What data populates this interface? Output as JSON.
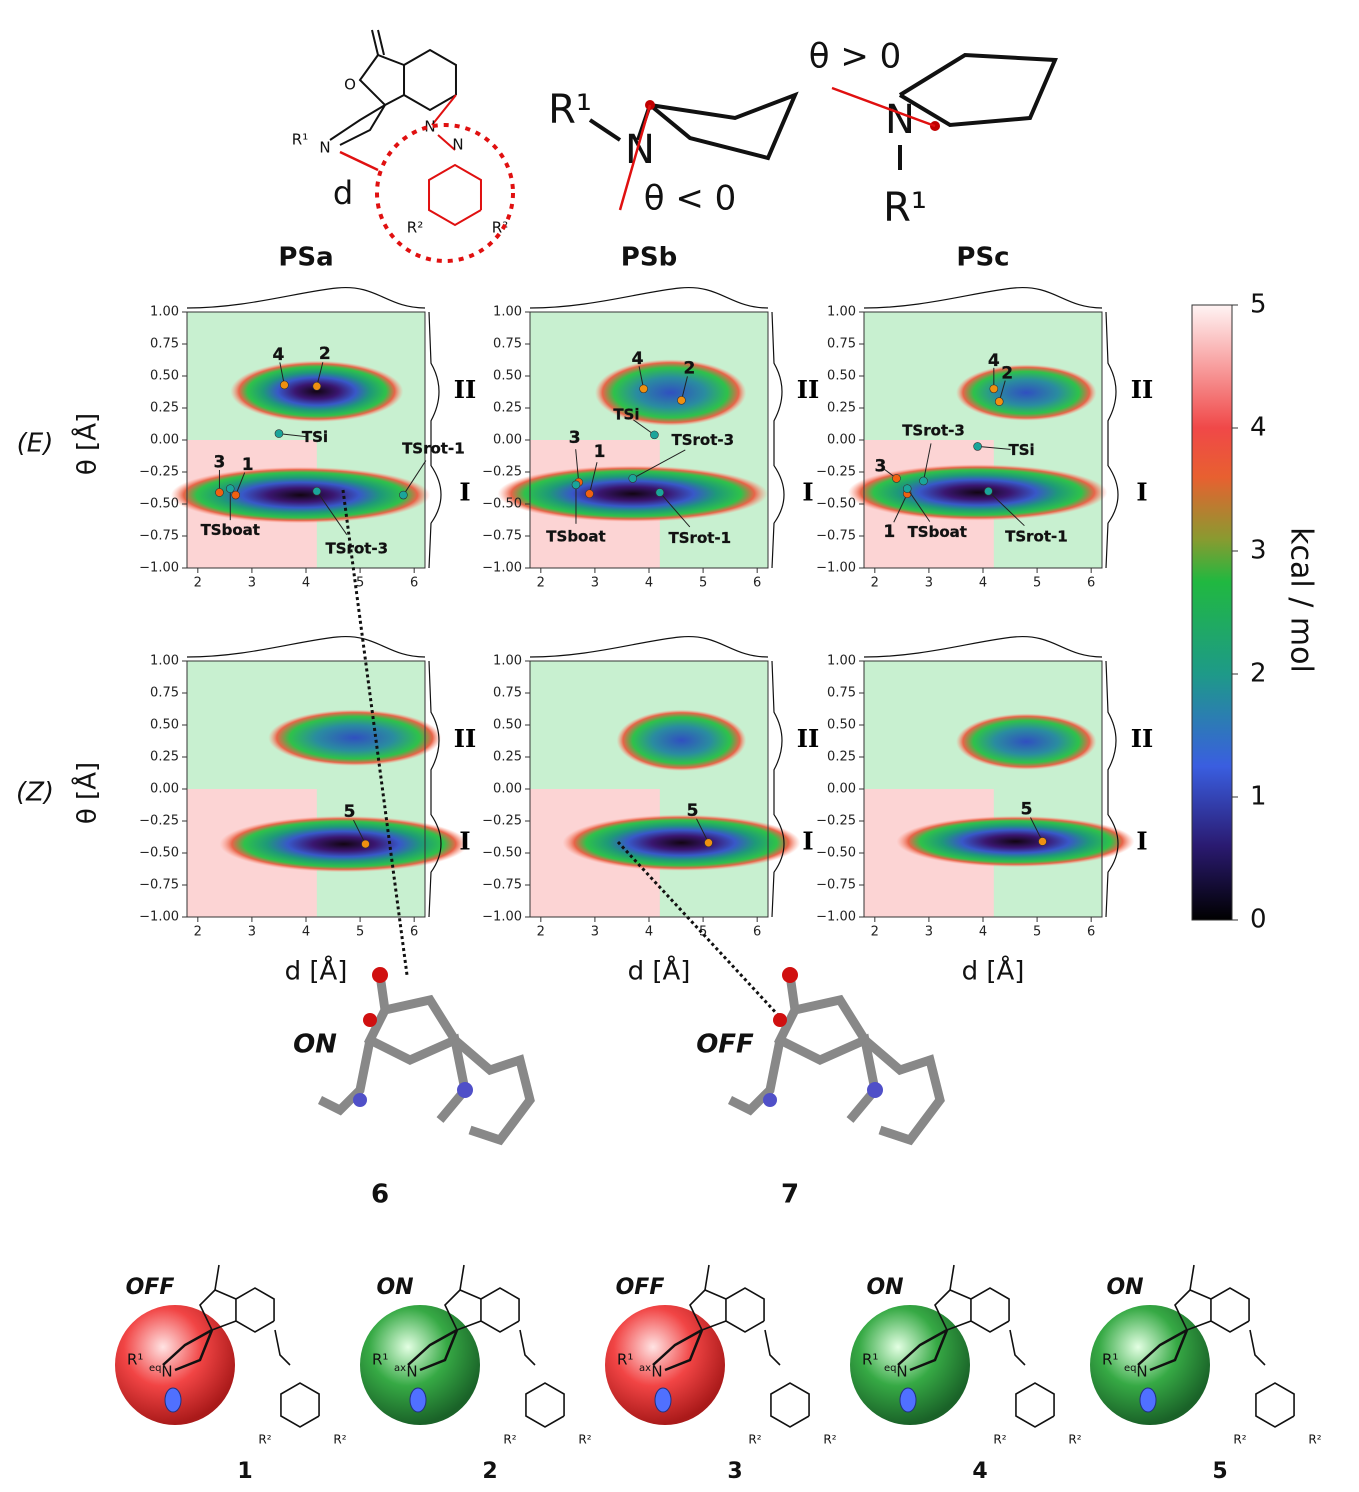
{
  "scheme": {
    "d": "d",
    "o": "O",
    "n": "N",
    "azo1": "N",
    "azo2": "N",
    "r1": "R¹",
    "r2a": "R²",
    "r2b": "R²",
    "theta_neg": "θ < 0",
    "theta_pos": "θ > 0",
    "left_r1": "R¹",
    "left_n": "N",
    "right_n": "N",
    "right_r1": "R¹"
  },
  "columns": [
    "PSa",
    "PSb",
    "PSc"
  ],
  "rows": [
    {
      "label": "(E)",
      "ylabel": "θ [Å]"
    },
    {
      "label": "(Z)",
      "ylabel": "θ [Å]"
    }
  ],
  "xlabel": "d [Å]",
  "basins": [
    "II",
    "I"
  ],
  "axes": {
    "xlim": [
      1.8,
      6.2
    ],
    "ylim": [
      -1,
      1
    ],
    "xticks": [
      2,
      3,
      4,
      5,
      6
    ],
    "yticks": [
      {
        "value": 1,
        "label": "1.00"
      },
      {
        "value": 0.75,
        "label": "0.75"
      },
      {
        "value": 0.5,
        "label": "0.50"
      },
      {
        "value": 0.25,
        "label": "0.25"
      },
      {
        "value": 0,
        "label": "0.00"
      },
      {
        "value": -0.25,
        "label": "−0.25"
      },
      {
        "value": -0.5,
        "label": "−0.50"
      },
      {
        "value": -0.75,
        "label": "−0.75"
      },
      {
        "value": -1,
        "label": "−1.00"
      }
    ]
  },
  "panels": [
    {
      "points": [
        {
          "label": "4",
          "d": 3.6,
          "theta": 0.43,
          "color": "#f09010"
        },
        {
          "label": "2",
          "d": 4.2,
          "theta": 0.42,
          "color": "#f09010"
        },
        {
          "label": "TSi",
          "d": 3.5,
          "theta": 0.05,
          "color": "#1aa59a"
        },
        {
          "label": "3",
          "d": 2.4,
          "theta": -0.41,
          "color": "#f06010"
        },
        {
          "label": "1",
          "d": 2.7,
          "theta": -0.43,
          "color": "#f06010"
        },
        {
          "label": "TSboat",
          "d": 2.6,
          "theta": -0.38,
          "color": "#1aa59a"
        },
        {
          "label": "TSrot-3",
          "d": 4.2,
          "theta": -0.4,
          "color": "#1aa59a"
        },
        {
          "label": "TSrot-1",
          "d": 5.8,
          "theta": -0.43,
          "color": "#1aa59a"
        }
      ]
    },
    {
      "points": [
        {
          "label": "4",
          "d": 3.9,
          "theta": 0.4,
          "color": "#f09010"
        },
        {
          "label": "2",
          "d": 4.6,
          "theta": 0.31,
          "color": "#f09010"
        },
        {
          "label": "TSi",
          "d": 4.1,
          "theta": 0.04,
          "color": "#1aa59a"
        },
        {
          "label": "3",
          "d": 2.7,
          "theta": -0.33,
          "color": "#f06010"
        },
        {
          "label": "1",
          "d": 2.9,
          "theta": -0.42,
          "color": "#f06010"
        },
        {
          "label": "TSboat",
          "d": 2.65,
          "theta": -0.35,
          "color": "#1aa59a"
        },
        {
          "label": "TSrot-3",
          "d": 3.7,
          "theta": -0.3,
          "color": "#1aa59a"
        },
        {
          "label": "TSrot-1",
          "d": 4.2,
          "theta": -0.41,
          "color": "#1aa59a"
        }
      ]
    },
    {
      "points": [
        {
          "label": "4",
          "d": 4.2,
          "theta": 0.4,
          "color": "#f09010"
        },
        {
          "label": "2",
          "d": 4.3,
          "theta": 0.3,
          "color": "#f09010"
        },
        {
          "label": "TSi",
          "d": 3.9,
          "theta": -0.05,
          "color": "#1aa59a"
        },
        {
          "label": "3",
          "d": 2.4,
          "theta": -0.3,
          "color": "#f06010"
        },
        {
          "label": "1",
          "d": 2.6,
          "theta": -0.42,
          "color": "#f06010"
        },
        {
          "label": "TSboat",
          "d": 2.6,
          "theta": -0.38,
          "color": "#1aa59a"
        },
        {
          "label": "TSrot-3",
          "d": 2.9,
          "theta": -0.32,
          "color": "#1aa59a"
        },
        {
          "label": "TSrot-1",
          "d": 4.1,
          "theta": -0.4,
          "color": "#1aa59a"
        }
      ]
    },
    {
      "points": [
        {
          "label": "5",
          "d": 5.1,
          "theta": -0.43,
          "color": "#f09010"
        }
      ]
    },
    {
      "points": [
        {
          "label": "5",
          "d": 5.1,
          "theta": -0.42,
          "color": "#f09010"
        }
      ]
    },
    {
      "points": [
        {
          "label": "5",
          "d": 5.1,
          "theta": -0.41,
          "color": "#f09010"
        }
      ]
    }
  ],
  "colorbar": {
    "label": "kcal / mol",
    "lim": [
      0,
      5
    ],
    "ticks": [
      0,
      1,
      2,
      3,
      4,
      5
    ]
  },
  "structures": [
    {
      "number": "6",
      "state": "ON"
    },
    {
      "number": "7",
      "state": "OFF"
    }
  ],
  "molecules": [
    {
      "number": "1",
      "state": "OFF",
      "r1": "R¹",
      "sub": "eq",
      "n": "N",
      "r2a": "R²",
      "r2b": "R²"
    },
    {
      "number": "2",
      "state": "ON",
      "r1": "R¹",
      "sub": "ax",
      "n": "N",
      "r2a": "R²",
      "r2b": "R²"
    },
    {
      "number": "3",
      "state": "OFF",
      "r1": "R¹",
      "sub": "ax",
      "n": "N",
      "r2a": "R²",
      "r2b": "R²"
    },
    {
      "number": "4",
      "state": "ON",
      "r1": "R¹",
      "sub": "eq",
      "n": "N",
      "r2a": "R²",
      "r2b": "R²"
    },
    {
      "number": "5",
      "state": "ON",
      "r1": "R¹",
      "sub": "eq",
      "n": "N",
      "r2a": "R²",
      "r2b": "R²"
    }
  ]
}
